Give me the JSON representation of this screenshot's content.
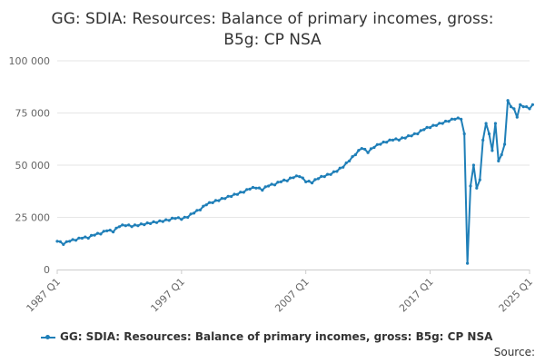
{
  "chart_data": {
    "type": "line",
    "title_line1": "GG: SDIA: Resources: Balance of primary incomes, gross:",
    "title_line2": "B5g: CP NSA",
    "xlabel": "",
    "ylabel": "",
    "ylim": [
      0,
      100000
    ],
    "y_ticks": [
      {
        "value": 0,
        "label": "0"
      },
      {
        "value": 25000,
        "label": "25 000"
      },
      {
        "value": 50000,
        "label": "50 000"
      },
      {
        "value": 75000,
        "label": "75 000"
      },
      {
        "value": 100000,
        "label": "100 000"
      }
    ],
    "x_ticks": [
      "1987 Q1",
      "1997 Q1",
      "2007 Q1",
      "2017 Q1",
      "2025 Q1"
    ],
    "x_range": [
      "1987 Q1",
      "2025 Q1"
    ],
    "grid": true,
    "legend_position": "bottom",
    "colors": {
      "series": "#1f7fb8",
      "grid": "#e6e6e6"
    },
    "series": [
      {
        "name": "GG: SDIA: Resources: Balance of primary incomes, gross: B5g: CP NSA",
        "x": [
          1987.0,
          1987.5,
          1988.0,
          1988.5,
          1989.0,
          1989.5,
          1990.0,
          1990.5,
          1991.0,
          1991.5,
          1992.0,
          1992.5,
          1993.0,
          1993.5,
          1994.0,
          1994.5,
          1995.0,
          1995.5,
          1996.0,
          1996.5,
          1997.0,
          1997.5,
          1998.0,
          1998.5,
          1999.0,
          1999.5,
          2000.0,
          2000.5,
          2001.0,
          2001.5,
          2002.0,
          2002.5,
          2003.0,
          2003.5,
          2004.0,
          2004.5,
          2005.0,
          2005.5,
          2006.0,
          2006.5,
          2007.0,
          2007.5,
          2008.0,
          2008.5,
          2009.0,
          2009.5,
          2010.0,
          2010.5,
          2011.0,
          2011.5,
          2012.0,
          2012.5,
          2013.0,
          2013.5,
          2014.0,
          2014.5,
          2015.0,
          2015.5,
          2016.0,
          2016.5,
          2017.0,
          2017.5,
          2018.0,
          2018.5,
          2019.0,
          2019.5,
          2019.75,
          2020.0,
          2020.25,
          2020.5,
          2020.75,
          2021.0,
          2021.25,
          2021.5,
          2021.75,
          2022.0,
          2022.25,
          2022.5,
          2022.75,
          2023.0,
          2023.25,
          2023.5,
          2023.75,
          2024.0,
          2024.25,
          2024.5,
          2024.75,
          2025.0,
          2025.25
        ],
        "values": [
          13500,
          12000,
          13500,
          14000,
          15000,
          15000,
          16500,
          17000,
          18500,
          18000,
          20500,
          21000,
          20500,
          21000,
          21500,
          22000,
          22500,
          23000,
          23500,
          24500,
          24000,
          25000,
          27000,
          28500,
          31000,
          32000,
          33000,
          34000,
          35000,
          36000,
          37000,
          38500,
          39000,
          38000,
          40000,
          40500,
          42000,
          42500,
          44000,
          44500,
          42000,
          41500,
          43500,
          44500,
          45500,
          47000,
          49000,
          52000,
          55000,
          58000,
          56000,
          58500,
          60000,
          61000,
          62000,
          62000,
          63000,
          64000,
          65000,
          67000,
          68000,
          69000,
          70000,
          71000,
          72000,
          72000,
          65000,
          3000,
          40000,
          50000,
          39000,
          43000,
          62000,
          70000,
          65000,
          57000,
          70000,
          52000,
          55000,
          60000,
          81000,
          78000,
          77000,
          73000,
          79000,
          78000,
          78000,
          77000,
          79000
        ]
      }
    ]
  },
  "source_label": "Source:"
}
